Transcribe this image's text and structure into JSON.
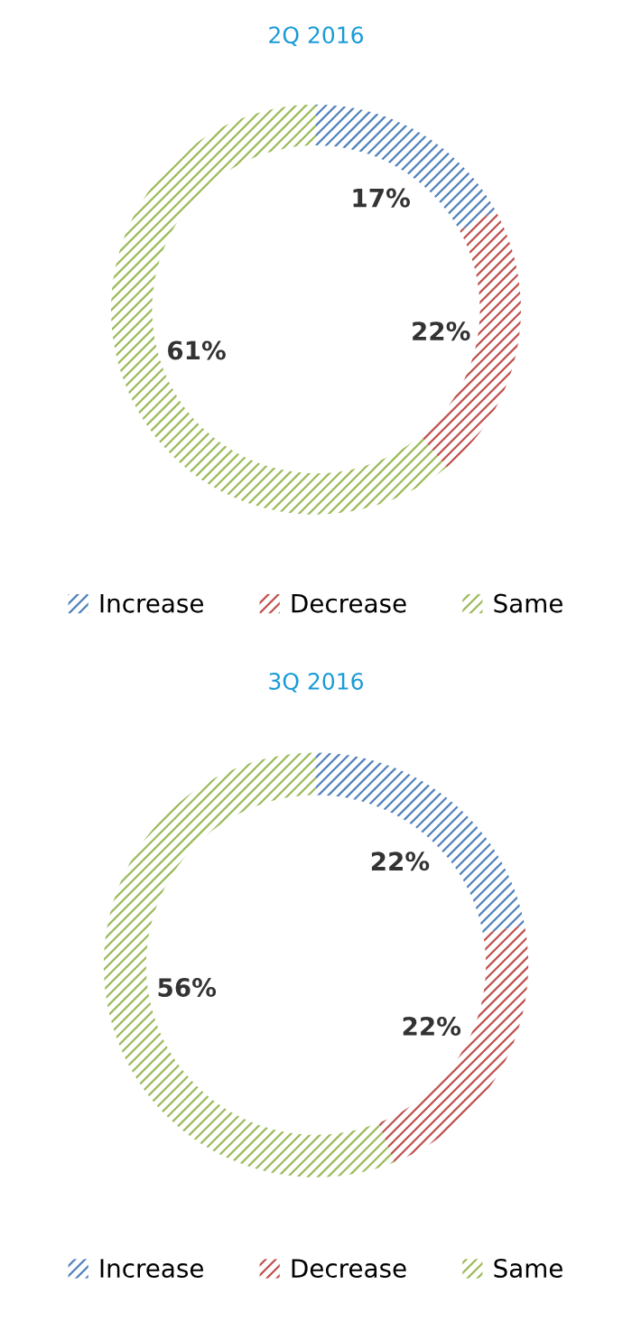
{
  "chart_data": [
    {
      "type": "donut",
      "title": "2Q 2016",
      "categories": [
        "Increase",
        "Decrease",
        "Same"
      ],
      "values": [
        17,
        22,
        61
      ],
      "colors": [
        "#4f81bd",
        "#c0504d",
        "#9bbb59"
      ],
      "value_labels": [
        "17%",
        "22%",
        "61%"
      ],
      "legend": "bottom"
    },
    {
      "type": "donut",
      "title": "3Q 2016",
      "categories": [
        "Increase",
        "Decrease",
        "Same"
      ],
      "values": [
        22,
        22,
        56
      ],
      "colors": [
        "#4f81bd",
        "#c0504d",
        "#9bbb59"
      ],
      "value_labels": [
        "22%",
        "22%",
        "56%"
      ],
      "legend": "bottom"
    }
  ]
}
